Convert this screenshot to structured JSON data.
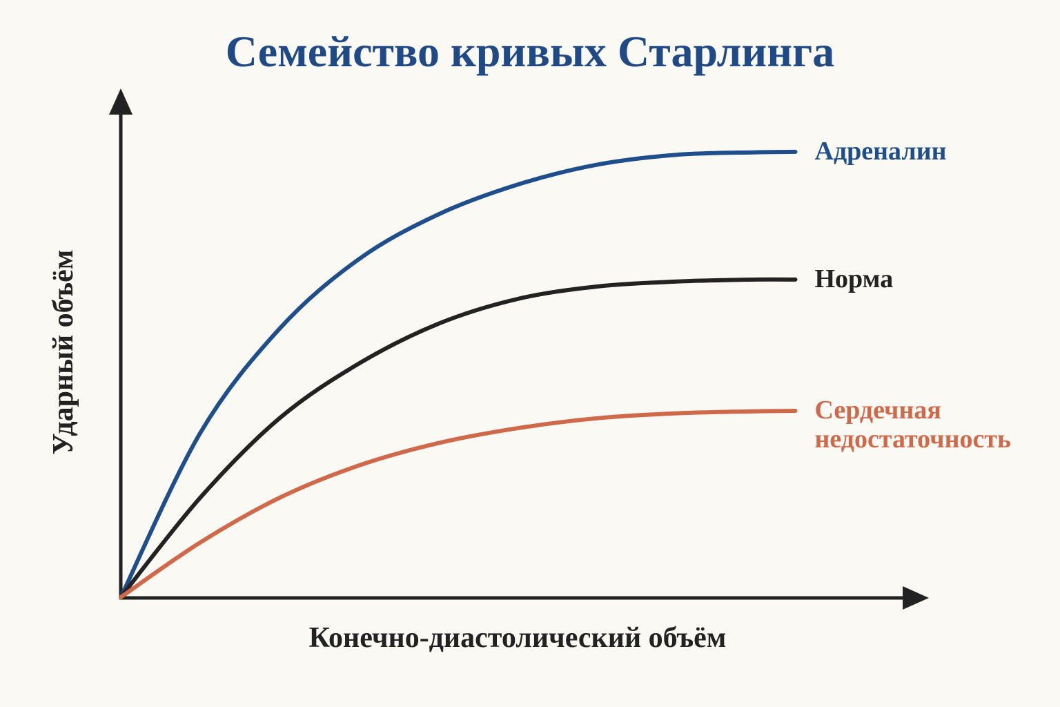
{
  "chart_data": {
    "type": "line",
    "title": "Семейство кривых Старлинга",
    "x_label": "Конечно-диастолический объём",
    "y_label": "Ударный объём",
    "xlim": [
      0,
      100
    ],
    "ylim": [
      0,
      100
    ],
    "x": [
      0,
      10,
      20,
      30,
      40,
      50,
      60,
      70,
      80,
      85
    ],
    "series": [
      {
        "name": "Адреналин",
        "color": "#1f4e8c",
        "values": [
          0,
          33,
          54,
          68,
          77,
          83,
          87,
          89,
          89.5,
          89.6
        ]
      },
      {
        "name": "Норма",
        "color": "#222222",
        "values": [
          0,
          20,
          36,
          47,
          55,
          60,
          62.5,
          63.5,
          63.9,
          63.9
        ]
      },
      {
        "name": "Сердечная недостаточность",
        "color": "#d0694a",
        "values": [
          0,
          11,
          20,
          26.5,
          31,
          34,
          36,
          37,
          37.4,
          37.5
        ]
      }
    ]
  }
}
